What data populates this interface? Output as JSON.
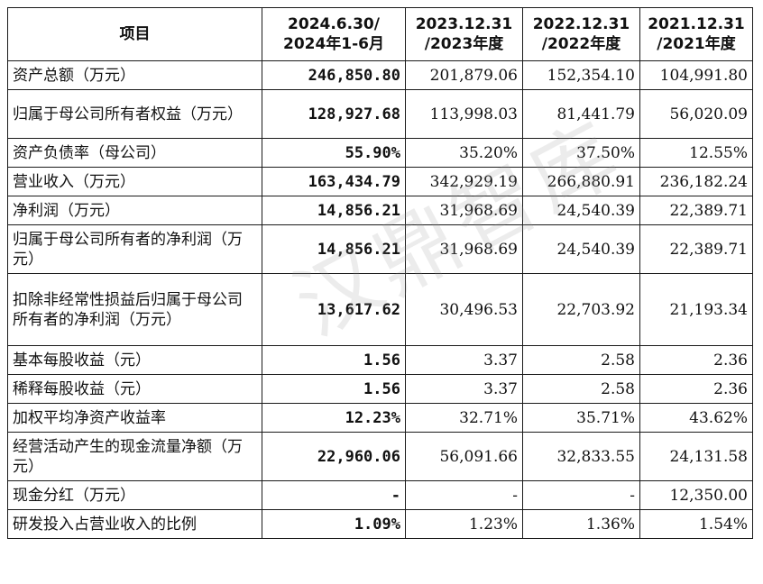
{
  "table": {
    "headers": [
      "项目",
      "2024.6.30/ 2024年1-6月",
      "2023.12.31 /2023年度",
      "2022.12.31 /2022年度",
      "2021.12.31 /2021年度"
    ],
    "rows": [
      {
        "label": "资产总额（万元）",
        "values": [
          "246,850.80",
          "201,879.06",
          "152,354.10",
          "104,991.80"
        ]
      },
      {
        "label": "归属于母公司所有者权益（万元）",
        "values": [
          "128,927.68",
          "113,998.03",
          "81,441.79",
          "56,020.09"
        ]
      },
      {
        "label": "资产负债率（母公司）",
        "values": [
          "55.90%",
          "35.20%",
          "37.50%",
          "12.55%"
        ]
      },
      {
        "label": "营业收入（万元）",
        "values": [
          "163,434.79",
          "342,929.19",
          "266,880.91",
          "236,182.24"
        ]
      },
      {
        "label": "净利润（万元）",
        "values": [
          "14,856.21",
          "31,968.69",
          "24,540.39",
          "22,389.71"
        ]
      },
      {
        "label": "归属于母公司所有者的净利润（万元）",
        "values": [
          "14,856.21",
          "31,968.69",
          "24,540.39",
          "22,389.71"
        ]
      },
      {
        "label": "扣除非经常性损益后归属于母公司所有者的净利润（万元）",
        "values": [
          "13,617.62",
          "30,496.53",
          "22,703.92",
          "21,193.34"
        ]
      },
      {
        "label": "基本每股收益（元）",
        "values": [
          "1.56",
          "3.37",
          "2.58",
          "2.36"
        ]
      },
      {
        "label": "稀释每股收益（元）",
        "values": [
          "1.56",
          "3.37",
          "2.58",
          "2.36"
        ]
      },
      {
        "label": "加权平均净资产收益率",
        "values": [
          "12.23%",
          "32.71%",
          "35.71%",
          "43.62%"
        ]
      },
      {
        "label": "经营活动产生的现金流量净额（万元）",
        "values": [
          "22,960.06",
          "56,091.66",
          "32,833.55",
          "24,131.58"
        ]
      },
      {
        "label": "现金分红（万元）",
        "values": [
          "-",
          "-",
          "-",
          "12,350.00"
        ]
      },
      {
        "label": "研发投入占营业收入的比例",
        "values": [
          "1.09%",
          "1.23%",
          "1.36%",
          "1.54%"
        ]
      }
    ]
  },
  "watermark": "汉鼎智库"
}
